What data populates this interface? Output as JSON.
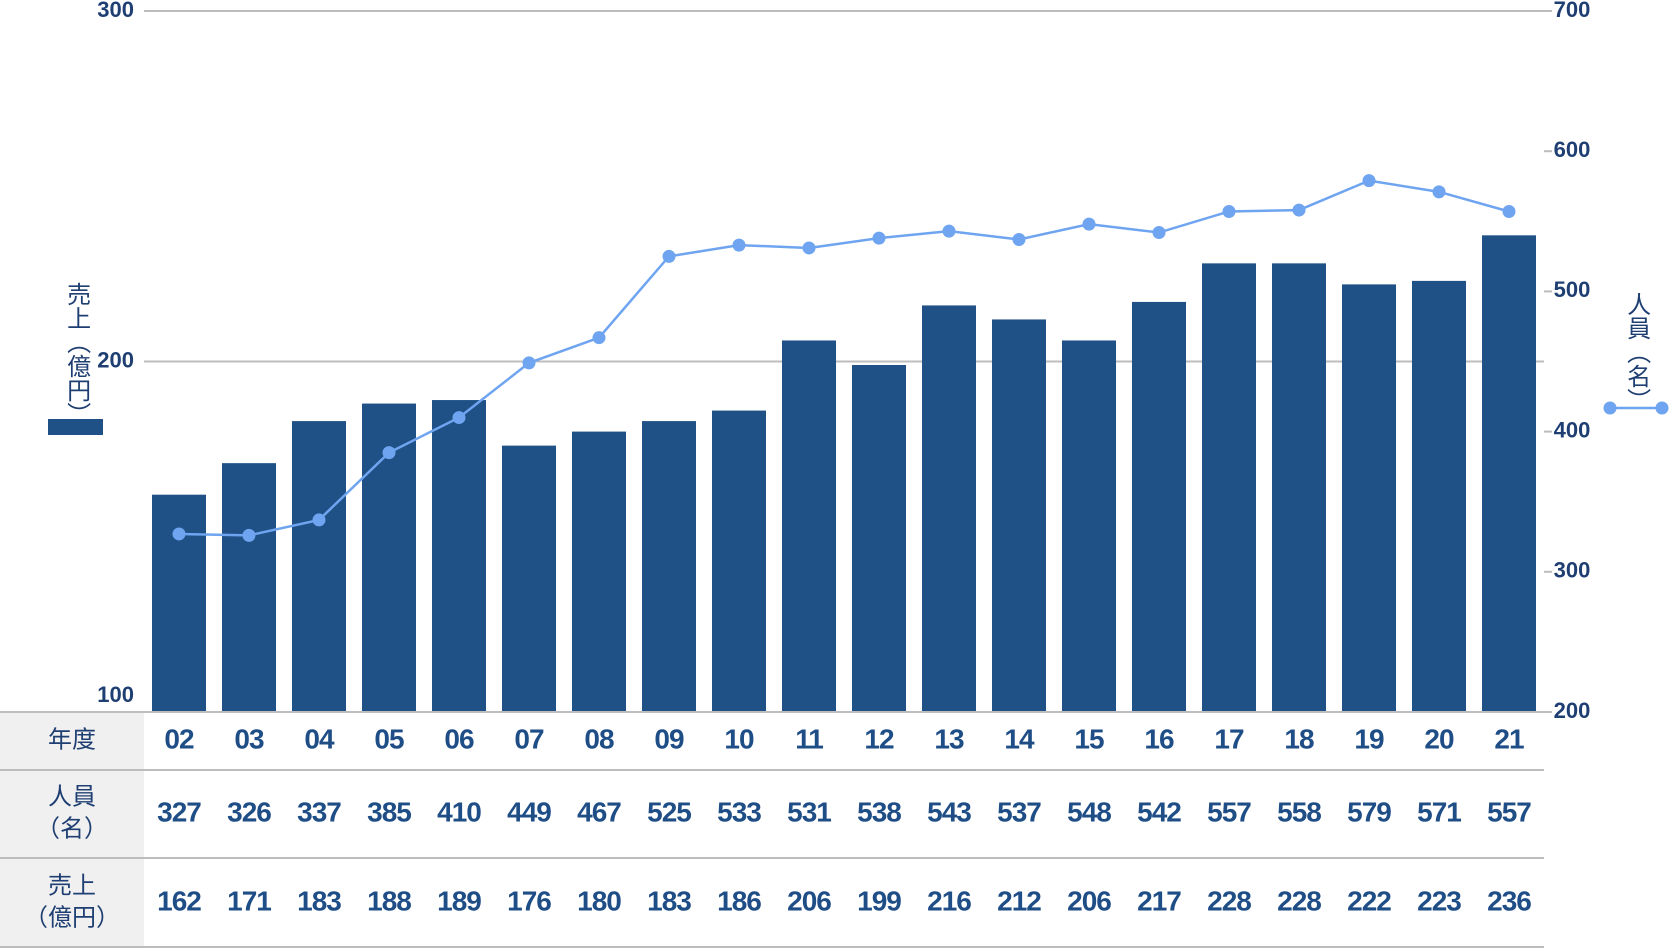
{
  "chart_data": {
    "type": "bar-line",
    "categories": [
      "02",
      "03",
      "04",
      "05",
      "06",
      "07",
      "08",
      "09",
      "10",
      "11",
      "12",
      "13",
      "14",
      "15",
      "16",
      "17",
      "18",
      "19",
      "20",
      "21"
    ],
    "series": [
      {
        "name": "売上（億円）",
        "type": "bar",
        "color": "#1f5086",
        "values": [
          162,
          171,
          183,
          188,
          189,
          176,
          180,
          183,
          186,
          206,
          199,
          216,
          212,
          206,
          217,
          228,
          228,
          222,
          223,
          236
        ]
      },
      {
        "name": "人員（名）",
        "type": "line",
        "axis": "y2",
        "color": "#6fa4f0",
        "values": [
          327,
          326,
          337,
          385,
          410,
          449,
          467,
          525,
          533,
          531,
          538,
          543,
          537,
          548,
          542,
          557,
          558,
          579,
          571,
          557
        ]
      }
    ],
    "ylim": [
      100,
      300
    ],
    "yticks": [
      100,
      200,
      300
    ],
    "y2lim": [
      200,
      700
    ],
    "y2ticks": [
      200,
      300,
      400,
      500,
      600,
      700
    ],
    "grid": true,
    "table_row_labels": [
      [
        "年度"
      ],
      [
        "人員",
        "（名）"
      ],
      [
        "売上",
        "（億円）"
      ]
    ]
  }
}
